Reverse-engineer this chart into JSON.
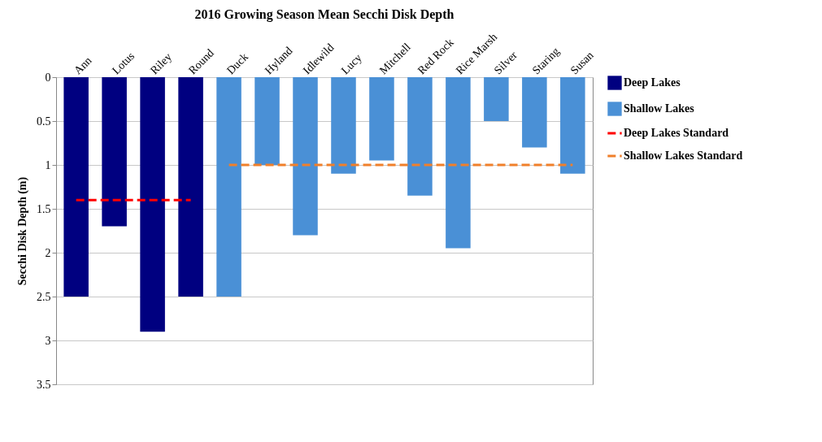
{
  "chart_data": {
    "type": "bar",
    "title": "2016 Growing Season Mean Secchi Disk Depth",
    "ylabel": "Secchi Disk Depth (m)",
    "categories": [
      "Ann",
      "Lotus",
      "Riley",
      "Round",
      "Duck",
      "Hyland",
      "Idlewild",
      "Lucy",
      "Mitchell",
      "Red Rock",
      "Rice Marsh",
      "Silver",
      "Staring",
      "Susan"
    ],
    "series": [
      {
        "name": "Deep Lakes",
        "color": "#000080",
        "values": [
          2.5,
          1.7,
          2.9,
          2.5,
          null,
          null,
          null,
          null,
          null,
          null,
          null,
          null,
          null,
          null
        ]
      },
      {
        "name": "Shallow Lakes",
        "color": "#4a90d6",
        "values": [
          null,
          null,
          null,
          null,
          2.5,
          1.0,
          1.8,
          1.1,
          0.95,
          1.35,
          1.95,
          0.5,
          0.8,
          1.1
        ]
      },
      {
        "name": "Deep Lakes Standard",
        "type": "line",
        "color": "#ff0000",
        "line_style": "dashed",
        "values": [
          1.4,
          1.4,
          1.4,
          1.4,
          null,
          null,
          null,
          null,
          null,
          null,
          null,
          null,
          null,
          null
        ]
      },
      {
        "name": "Shallow Lakes Standard",
        "type": "line",
        "color": "#f07f2a",
        "line_style": "dashed",
        "values": [
          null,
          null,
          null,
          null,
          1.0,
          1.0,
          1.0,
          1.0,
          1.0,
          1.0,
          1.0,
          1.0,
          1.0,
          1.0
        ]
      }
    ],
    "ylim": [
      3.5,
      0
    ],
    "yticks": [
      0,
      0.5,
      1,
      1.5,
      2,
      2.5,
      3,
      3.5
    ],
    "grid": "y",
    "legend": "right",
    "marker": "none"
  }
}
